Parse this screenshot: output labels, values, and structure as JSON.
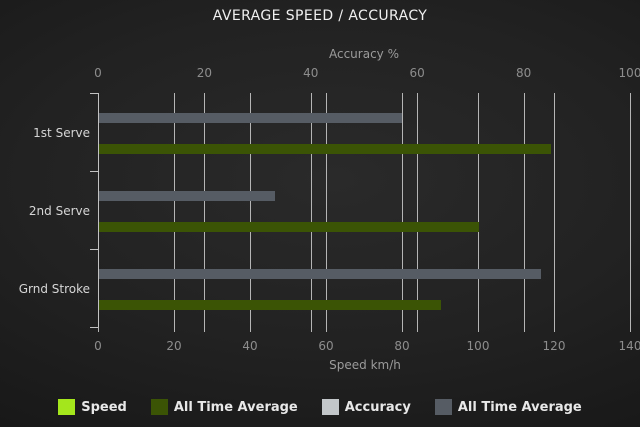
{
  "chart_data": {
    "type": "bar",
    "orientation": "horizontal",
    "title": "AVERAGE SPEED / ACCURACY",
    "categories": [
      "1st Serve",
      "2nd Serve",
      "Grnd Stroke"
    ],
    "axes": {
      "top": {
        "label": "Accuracy %",
        "min": 0,
        "max": 100,
        "ticks": [
          0,
          20,
          40,
          60,
          80,
          100
        ]
      },
      "bottom": {
        "label": "Speed km/h",
        "min": 0,
        "max": 140,
        "ticks": [
          0,
          20,
          40,
          60,
          80,
          100,
          120,
          140
        ]
      }
    },
    "series": [
      {
        "name": "Speed",
        "axis": "bottom",
        "color": "#a4e61c",
        "values": [
          0,
          0,
          0
        ]
      },
      {
        "name": "All Time Average",
        "axis": "bottom",
        "color": "#3b5405",
        "values": [
          119,
          100,
          90
        ]
      },
      {
        "name": "Accuracy",
        "axis": "top",
        "color": "#c2c6c9",
        "values": [
          0,
          0,
          0
        ]
      },
      {
        "name": "All Time Average",
        "axis": "top",
        "color": "#565c64",
        "values": [
          57,
          33,
          83
        ]
      }
    ],
    "legend_position": "bottom",
    "grid": true,
    "colors": {
      "background_dark": "#1e1e1e",
      "gridline": "#b5b5b5",
      "title_text": "#f0f0f0",
      "tick_text": "#8d8d8d",
      "category_text": "#d6d6d6",
      "legend_text": "#e8e8e8"
    }
  }
}
